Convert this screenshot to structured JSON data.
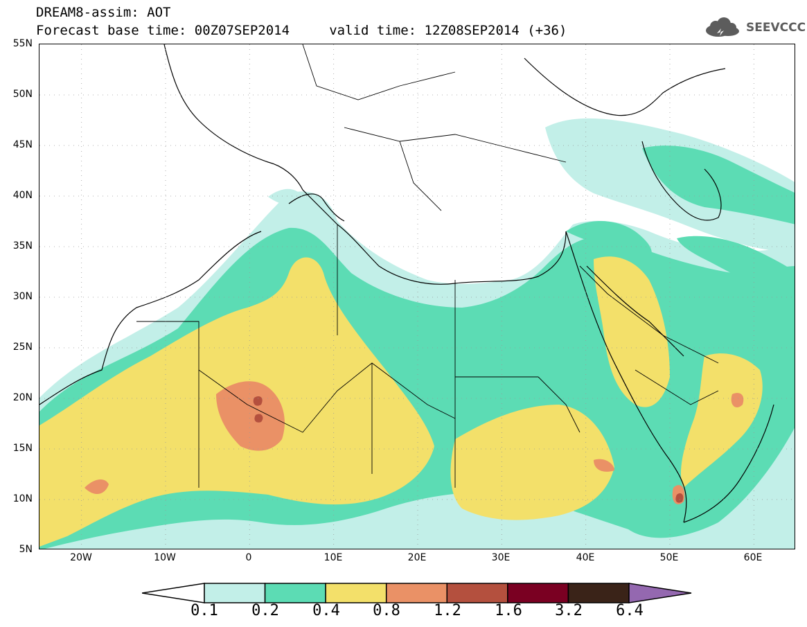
{
  "header": {
    "line1": "DREAM8-assim: AOT",
    "line2": "Forecast base time: 00Z07SEP2014     valid time: 12Z08SEP2014 (+36)"
  },
  "logo": {
    "text": "SEEVCCC",
    "icon": "cloud-icon"
  },
  "map": {
    "lat_labels": [
      "55N",
      "50N",
      "45N",
      "40N",
      "35N",
      "30N",
      "25N",
      "20N",
      "15N",
      "10N",
      "5N"
    ],
    "lon_labels": [
      "20W",
      "10W",
      "0",
      "10E",
      "20E",
      "30E",
      "40E",
      "50E",
      "60E"
    ],
    "extent": {
      "lon_min": -25,
      "lon_max": 65,
      "lat_min": 5,
      "lat_max": 55
    }
  },
  "legend": {
    "levels": [
      "0.1",
      "0.2",
      "0.4",
      "0.8",
      "1.2",
      "1.6",
      "3.2",
      "6.4"
    ],
    "colors": [
      "#c2efe8",
      "#5cdcb4",
      "#f3e06a",
      "#ea9166",
      "#b4503e",
      "#7a0022",
      "#3a2318",
      "#9468b0"
    ]
  }
}
